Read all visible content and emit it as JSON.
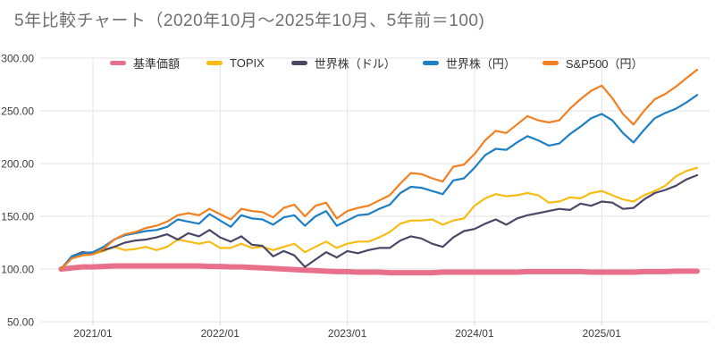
{
  "chart_data": {
    "type": "line",
    "title": "5年比較チャート（2020年10月～2025年10月、5年前＝100)",
    "x_start": "2020/10",
    "x_end": "2025/10",
    "x_interval": "monthly",
    "x_tick_labels": [
      "2021/01",
      "2022/01",
      "2023/01",
      "2024/01",
      "2025/01"
    ],
    "x_tick_month_indices": [
      3,
      15,
      27,
      39,
      51
    ],
    "ylim": [
      50,
      300
    ],
    "y_tick_labels": [
      "300.00",
      "250.00",
      "200.00",
      "150.00",
      "100.00",
      "50.00"
    ],
    "grid": true,
    "legend_position": "top",
    "base_value_note": "5年前＝100",
    "series": [
      {
        "name": "基準価額",
        "color": "#e8708a",
        "emphasis": true,
        "values": [
          100,
          101,
          102,
          102,
          102.5,
          103,
          103,
          103,
          103,
          103,
          103,
          103,
          103,
          103,
          102.5,
          102.5,
          102,
          102,
          101.5,
          101,
          100.5,
          100,
          99.5,
          99,
          98.5,
          98,
          97.5,
          97.5,
          97,
          97,
          97,
          96.5,
          96.5,
          96.5,
          96.5,
          96.5,
          97,
          97,
          97,
          97,
          97,
          97,
          97,
          97,
          97.5,
          97.5,
          97.5,
          97.5,
          97.5,
          97.5,
          97,
          97,
          97,
          97,
          97,
          97.5,
          97.5,
          97.5,
          98,
          98,
          98
        ]
      },
      {
        "name": "TOPIX",
        "color": "#f8bc15",
        "emphasis": false,
        "values": [
          100,
          111,
          114,
          114,
          117,
          121,
          118,
          119,
          121,
          118,
          121,
          128,
          126,
          124,
          126,
          120,
          120,
          124,
          120,
          121,
          118,
          121,
          124,
          116,
          121,
          126,
          120,
          124,
          126,
          126,
          130,
          135,
          143,
          146,
          146,
          147,
          142,
          146,
          148,
          160,
          167,
          171,
          169,
          170,
          172,
          170,
          163,
          164,
          168,
          167,
          172,
          174,
          170,
          166,
          164,
          170,
          174,
          179,
          188,
          193,
          196
        ]
      },
      {
        "name": "世界株（ドル）",
        "color": "#4c4766",
        "emphasis": false,
        "values": [
          100,
          112,
          116,
          115,
          118,
          121,
          125,
          127,
          128,
          130,
          133,
          128,
          134,
          131,
          137,
          130,
          126,
          131,
          123,
          122,
          112,
          117,
          113,
          102,
          109,
          116,
          111,
          117,
          115,
          118,
          120,
          120,
          127,
          131,
          129,
          124,
          121,
          130,
          136,
          138,
          143,
          147,
          142,
          148,
          151,
          153,
          155,
          157,
          156,
          162,
          160,
          164,
          163,
          157,
          158,
          166,
          172,
          175,
          179,
          185,
          189
        ]
      },
      {
        "name": "世界株（円）",
        "color": "#1d7fc4",
        "emphasis": false,
        "values": [
          100,
          112,
          115,
          116,
          121,
          128,
          132,
          134,
          136,
          137,
          140,
          147,
          145,
          143,
          152,
          146,
          140,
          151,
          148,
          147,
          142,
          149,
          151,
          141,
          150,
          155,
          141,
          146,
          151,
          152,
          157,
          161,
          172,
          178,
          177,
          174,
          171,
          184,
          186,
          196,
          208,
          214,
          213,
          220,
          226,
          222,
          217,
          219,
          228,
          235,
          243,
          247,
          241,
          229,
          220,
          232,
          243,
          248,
          252,
          258,
          265
        ]
      },
      {
        "name": "S&P500（円）",
        "color": "#f28021",
        "emphasis": false,
        "values": [
          100,
          110,
          113,
          114,
          119,
          128,
          133,
          135,
          139,
          141,
          145,
          151,
          153,
          151,
          157,
          152,
          147,
          157,
          155,
          154,
          149,
          158,
          161,
          150,
          160,
          163,
          148,
          155,
          158,
          160,
          165,
          170,
          181,
          191,
          190,
          186,
          183,
          197,
          199,
          209,
          222,
          231,
          229,
          237,
          245,
          241,
          239,
          241,
          252,
          261,
          269,
          274,
          262,
          247,
          237,
          250,
          261,
          266,
          273,
          281,
          289
        ]
      }
    ]
  }
}
